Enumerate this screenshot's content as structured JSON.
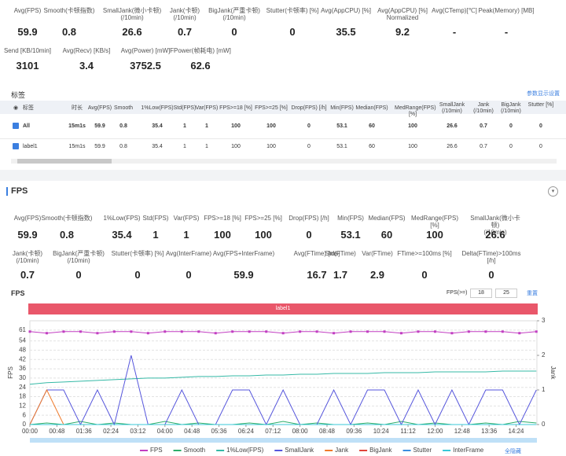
{
  "summary": {
    "row1": [
      {
        "label": "Avg(FPS)",
        "value": 59.9
      },
      {
        "label": "Smooth(卡顿指数)",
        "value": 0.8
      },
      {
        "label": "SmallJank(微小卡顿)\n(/10min)",
        "value": 26.6
      },
      {
        "label": "Jank(卡顿)\n(/10min)",
        "value": 0.7
      },
      {
        "label": "BigJank(严重卡顿)\n(/10min)",
        "value": 0
      },
      {
        "label": "Stutter(卡顿率) [%]",
        "value": 0
      },
      {
        "label": "Avg(AppCPU) [%]",
        "value": 35.5
      },
      {
        "label": "Avg(AppCPU) [%]\nNormalized",
        "value": 9.2
      },
      {
        "label": "Avg(CTemp)[℃]",
        "value": "-"
      },
      {
        "label": "Peak(Memory) [MB]",
        "value": "-"
      }
    ],
    "row2": [
      {
        "label": "Send [KB/10min]",
        "value": 3101
      },
      {
        "label": "Avg(Recv) [KB/s]",
        "value": 3.4
      },
      {
        "label": "Avg(Power) [mW]",
        "value": 3752.5
      },
      {
        "label": "FPower(帧耗电) [mW]",
        "value": 62.6
      }
    ]
  },
  "tags": {
    "title": "标签",
    "settings": "参数显示设置",
    "columns": [
      "标签",
      "时长",
      "Avg(FPS)",
      "Smooth",
      "1%Low(FPS)",
      "Std(FPS)",
      "Var(FPS)",
      "FPS>=18 [%]",
      "FPS>=25 [%]",
      "Drop(FPS) [/h]",
      "Min(FPS)",
      "Median(FPS)",
      "MedRange(FPS)[%]",
      "SmallJank\n(/10min)",
      "Jank\n(/10min)",
      "BigJank\n(/10min)",
      "Stutter [%]"
    ],
    "rows": [
      [
        "All",
        "15m1s",
        59.9,
        0.8,
        35.4,
        1,
        1,
        100,
        100,
        0,
        53.1,
        60,
        100,
        26.6,
        0.7,
        0,
        0
      ],
      [
        "label1",
        "15m1s",
        59.9,
        0.8,
        35.4,
        1,
        1,
        100,
        100,
        0,
        53.1,
        60,
        100,
        26.6,
        0.7,
        0,
        0
      ]
    ]
  },
  "fps_section": {
    "title": "FPS",
    "row1": [
      {
        "label": "Avg(FPS)",
        "value": 59.9
      },
      {
        "label": "Smooth(卡顿指数)",
        "value": 0.8
      },
      {
        "label": "1%Low(FPS)",
        "value": 35.4
      },
      {
        "label": "Std(FPS)",
        "value": 1
      },
      {
        "label": "Var(FPS)",
        "value": 1
      },
      {
        "label": "FPS>=18 [%]",
        "value": 100
      },
      {
        "label": "FPS>=25 [%]",
        "value": 100
      },
      {
        "label": "Drop(FPS) [/h]",
        "value": 0
      },
      {
        "label": "Min(FPS)",
        "value": 53.1
      },
      {
        "label": "Median(FPS)",
        "value": 60
      },
      {
        "label": "MedRange(FPS)[%]",
        "value": 100
      },
      {
        "label": "SmallJank(微小卡顿)\n(/10min)",
        "value": 26.6
      }
    ],
    "row2": [
      {
        "label": "Jank(卡顿)\n(/10min)",
        "value": 0.7
      },
      {
        "label": "BigJank(严重卡顿)\n(/10min)",
        "value": 0
      },
      {
        "label": "Stutter(卡顿率) [%]",
        "value": 0
      },
      {
        "label": "Avg(InterFrame)",
        "value": 0
      },
      {
        "label": "Avg(FPS+InterFrame)",
        "value": 59.9
      },
      {
        "label": "Avg(FTime) [ms]",
        "value": 16.7
      },
      {
        "label": "Std(FTime)",
        "value": 1.7
      },
      {
        "label": "Var(FTime)",
        "value": 2.9
      },
      {
        "label": "FTime>=100ms [%]",
        "value": 0
      },
      {
        "label": "Delta(FTime)>100ms [/h]",
        "value": 0
      }
    ]
  },
  "chart_data": {
    "type": "line",
    "title": "FPS",
    "band_label": "label1",
    "filter_label": "FPS(>=)",
    "filter_inputs": [
      18,
      25
    ],
    "reset": "重置",
    "hide_all": "全隐藏",
    "ylabel": "FPS",
    "y2label": "Jank",
    "x": [
      0,
      30,
      60,
      90,
      120,
      150,
      180,
      210,
      240,
      270,
      300,
      330,
      360,
      390,
      420,
      450,
      480,
      510,
      540,
      570,
      600,
      630,
      660,
      690,
      720,
      750,
      780,
      810,
      840,
      870,
      900
    ],
    "xlim": [
      0,
      901
    ],
    "xticks": [
      {
        "value": 0,
        "label": "00:00"
      },
      {
        "value": 48,
        "label": "00:48"
      },
      {
        "value": 96,
        "label": "01:36"
      },
      {
        "value": 144,
        "label": "02:24"
      },
      {
        "value": 192,
        "label": "03:12"
      },
      {
        "value": 240,
        "label": "04:00"
      },
      {
        "value": 288,
        "label": "04:48"
      },
      {
        "value": 336,
        "label": "05:36"
      },
      {
        "value": 384,
        "label": "06:24"
      },
      {
        "value": 432,
        "label": "07:12"
      },
      {
        "value": 480,
        "label": "08:00"
      },
      {
        "value": 528,
        "label": "08:48"
      },
      {
        "value": 576,
        "label": "09:36"
      },
      {
        "value": 624,
        "label": "10:24"
      },
      {
        "value": 672,
        "label": "11:12"
      },
      {
        "value": 720,
        "label": "12:00"
      },
      {
        "value": 768,
        "label": "12:48"
      },
      {
        "value": 816,
        "label": "13:36"
      },
      {
        "value": 864,
        "label": "14:24"
      }
    ],
    "ylim": [
      0,
      67
    ],
    "yticks": [
      0,
      6,
      12,
      18,
      24,
      30,
      36,
      42,
      48,
      54,
      61
    ],
    "y2lim": [
      0,
      3
    ],
    "y2ticks": [
      0,
      1,
      2,
      3
    ],
    "grid": true,
    "series": [
      {
        "name": "FPS",
        "color": "#c23ec2",
        "values": [
          60,
          59,
          60,
          60,
          59,
          60,
          60,
          59,
          60,
          60,
          60,
          59,
          60,
          60,
          60,
          59,
          60,
          60,
          59,
          60,
          60,
          60,
          59,
          60,
          60,
          59,
          60,
          60,
          60,
          59,
          60
        ]
      },
      {
        "name": "Smooth",
        "color": "#2dae6a",
        "values": [
          0,
          1,
          0,
          2,
          0,
          1,
          0,
          0,
          2,
          0,
          1,
          0,
          0,
          1,
          0,
          2,
          0,
          1,
          0,
          0,
          1,
          0,
          2,
          0,
          1,
          0,
          0,
          1,
          0,
          2,
          1
        ]
      },
      {
        "name": "1%Low(FPS)",
        "color": "#35b9a6",
        "values": [
          26,
          27,
          27.5,
          28,
          28.5,
          29,
          29.5,
          30,
          30,
          30.5,
          31,
          31,
          31.5,
          31.5,
          32,
          32,
          32.5,
          32.5,
          33,
          33,
          33,
          33.5,
          33.5,
          33.5,
          34,
          34,
          34,
          34,
          34.5,
          34.5,
          34.5
        ]
      },
      {
        "name": "SmallJank",
        "color": "#5656dc",
        "axis": "y2",
        "values": [
          0,
          1,
          1,
          0,
          1,
          0,
          2,
          0,
          0,
          1,
          0,
          0,
          1,
          1,
          0,
          1,
          0,
          0,
          1,
          0,
          1,
          1,
          0,
          1,
          0,
          1,
          0,
          1,
          1,
          0,
          1
        ]
      },
      {
        "name": "Jank",
        "color": "#f07a2a",
        "axis": "y2",
        "values": [
          0,
          1,
          0,
          0,
          0,
          0,
          0,
          0,
          0,
          0,
          0,
          0,
          0,
          0,
          0,
          0,
          0,
          0,
          0,
          0,
          0,
          0,
          0,
          0,
          0,
          0,
          0,
          0,
          0,
          0,
          0
        ]
      },
      {
        "name": "BigJank",
        "color": "#e0443a",
        "axis": "y2",
        "values": [
          0,
          0,
          0,
          0,
          0,
          0,
          0,
          0,
          0,
          0,
          0,
          0,
          0,
          0,
          0,
          0,
          0,
          0,
          0,
          0,
          0,
          0,
          0,
          0,
          0,
          0,
          0,
          0,
          0,
          0,
          0
        ]
      },
      {
        "name": "Stutter",
        "color": "#3b8ee0",
        "axis": "y2",
        "values": [
          0,
          0,
          0,
          0,
          0,
          0,
          0,
          0,
          0,
          0,
          0,
          0,
          0,
          0,
          0,
          0,
          0,
          0,
          0,
          0,
          0,
          0,
          0,
          0,
          0,
          0,
          0,
          0,
          0,
          0,
          0
        ]
      },
      {
        "name": "InterFrame",
        "color": "#38c8d8",
        "values": [
          0,
          0,
          0,
          0,
          0,
          0,
          0,
          0,
          0,
          0,
          0,
          0,
          0,
          0,
          0,
          0,
          0,
          0,
          0,
          0,
          0,
          0,
          0,
          0,
          0,
          0,
          0,
          0,
          0,
          0,
          0
        ]
      }
    ]
  }
}
